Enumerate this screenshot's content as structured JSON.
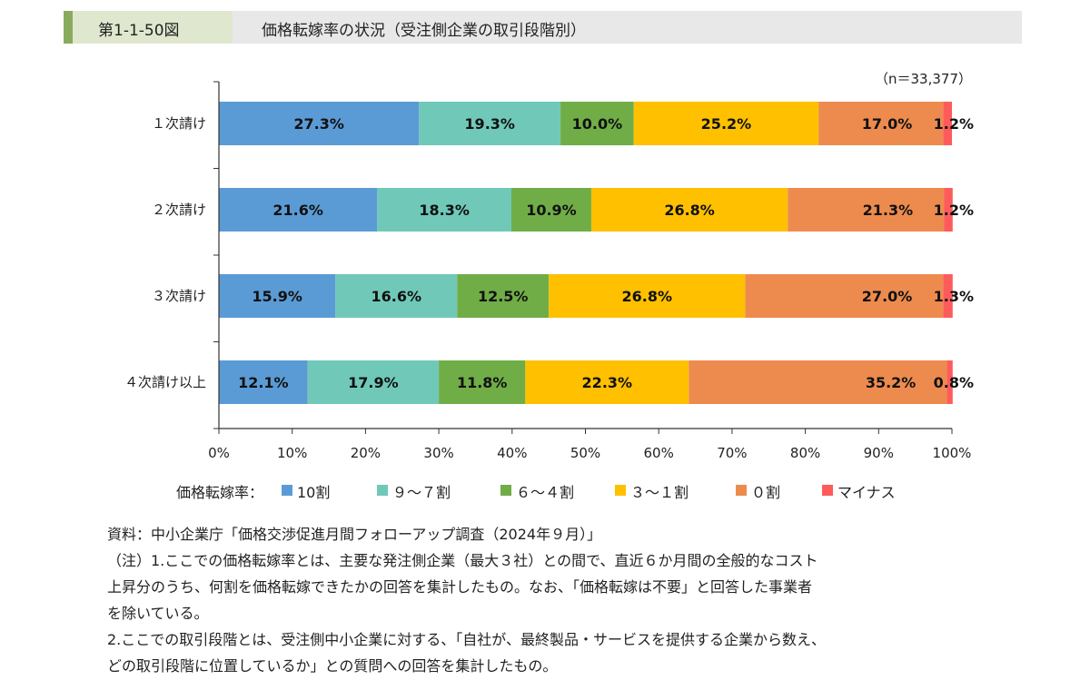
{
  "header": {
    "figure_number": "第1-1-50図",
    "title": "価格転嫁率の状況（受注側企業の取引段階別）"
  },
  "sample_note": "（n＝33,377）",
  "chart_data": {
    "type": "bar",
    "orientation": "horizontal",
    "stacked": "percent",
    "title": "価格転嫁率の状況（受注側企業の取引段階別）",
    "categories": [
      "１次請け",
      "２次請け",
      "３次請け",
      "４次請け以上"
    ],
    "series": [
      {
        "name": "10割",
        "color": "#5b9bd5",
        "values": [
          27.3,
          21.6,
          15.9,
          12.1
        ],
        "labels": [
          "27.3%",
          "21.6%",
          "15.9%",
          "12.1%"
        ]
      },
      {
        "name": "９～７割",
        "color": "#70c9b8",
        "values": [
          19.3,
          18.3,
          16.6,
          17.9
        ],
        "labels": [
          "19.3%",
          "18.3%",
          "16.6%",
          "17.9%"
        ]
      },
      {
        "name": "６～４割",
        "color": "#70ad47",
        "values": [
          10.0,
          10.9,
          12.5,
          11.8
        ],
        "labels": [
          "10.0%",
          "10.9%",
          "12.5%",
          "11.8%"
        ]
      },
      {
        "name": "３～１割",
        "color": "#ffc000",
        "values": [
          25.2,
          26.8,
          26.8,
          22.3
        ],
        "labels": [
          "25.2%",
          "26.8%",
          "26.8%",
          "22.3%"
        ]
      },
      {
        "name": "０割",
        "color": "#ed8b4e",
        "values": [
          17.0,
          21.3,
          27.0,
          35.2
        ],
        "labels": [
          "17.0%",
          "21.3%",
          "27.0%",
          "35.2%"
        ]
      },
      {
        "name": "マイナス",
        "color": "#ff5b5b",
        "values": [
          1.2,
          1.2,
          1.3,
          0.8
        ],
        "labels": [
          "1.2%",
          "1.2%",
          "1.3%",
          "0.8%"
        ]
      }
    ],
    "xlim": [
      0,
      100
    ],
    "x_ticks": [
      "0%",
      "10%",
      "20%",
      "30%",
      "40%",
      "50%",
      "60%",
      "70%",
      "80%",
      "90%",
      "100%"
    ],
    "grid": false,
    "legend_position": "bottom",
    "legend_title": "価格転嫁率："
  },
  "notes": [
    "資料：中小企業庁「価格交渉促進月間フォローアップ調査（2024年９月）」",
    "（注）1.ここでの価格転嫁率とは、主要な発注側企業（最大３社）との間で、直近６か月間の全般的なコスト",
    "上昇分のうち、何割を価格転嫁できたかの回答を集計したもの。なお、「価格転嫁は不要」と回答した事業者",
    "を除いている。",
    "2.ここでの取引段階とは、受注側中小企業に対する、「自社が、最終製品・サービスを提供する企業から数え、",
    "どの取引段階に位置しているか」との質問への回答を集計したもの。"
  ]
}
